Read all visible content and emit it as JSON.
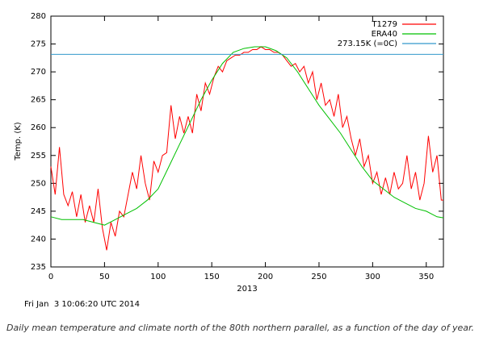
{
  "chart_data": {
    "type": "line",
    "xlabel": "2013",
    "ylabel": "Temp. (K)",
    "footer": "Fri Jan  3 10:06:20 UTC 2014",
    "caption": "Daily mean temperature and climate north of the 80th northern parallel, as a function of the day of year.",
    "xlim": [
      0,
      366
    ],
    "ylim": [
      235,
      280
    ],
    "xticks": [
      0,
      50,
      100,
      150,
      200,
      250,
      300,
      350
    ],
    "yticks": [
      235,
      240,
      245,
      250,
      255,
      260,
      265,
      270,
      275,
      280
    ],
    "legend": "upper right",
    "series": [
      {
        "name": "T1279",
        "color": "#ff0000",
        "x": [
          0,
          4,
          8,
          12,
          16,
          20,
          24,
          28,
          32,
          36,
          40,
          44,
          48,
          52,
          56,
          60,
          64,
          68,
          72,
          76,
          80,
          84,
          88,
          92,
          96,
          100,
          104,
          108,
          112,
          116,
          120,
          124,
          128,
          132,
          136,
          140,
          144,
          148,
          152,
          156,
          160,
          164,
          168,
          172,
          176,
          180,
          184,
          188,
          192,
          196,
          200,
          204,
          208,
          212,
          216,
          220,
          224,
          228,
          232,
          236,
          240,
          244,
          248,
          252,
          256,
          260,
          264,
          268,
          272,
          276,
          280,
          284,
          288,
          292,
          296,
          300,
          304,
          308,
          312,
          316,
          320,
          324,
          328,
          332,
          336,
          340,
          344,
          348,
          352,
          356,
          360,
          364,
          366
        ],
        "values": [
          253,
          248,
          256.5,
          248,
          246,
          248.5,
          244,
          248,
          243,
          246,
          243,
          249,
          242,
          238,
          243,
          240.5,
          245,
          244,
          248,
          252,
          249,
          255,
          250,
          247,
          254,
          252,
          255,
          255.5,
          264,
          258,
          262,
          259,
          262,
          259,
          266,
          263,
          268,
          266,
          269,
          271,
          270,
          272,
          272.5,
          273,
          273,
          273.5,
          273.5,
          274,
          274,
          274.5,
          274,
          274,
          273.5,
          273.5,
          273,
          272,
          271,
          271.5,
          270,
          271,
          268,
          270,
          265,
          268,
          264,
          265,
          262,
          266,
          260,
          262,
          258,
          255,
          258,
          253,
          255,
          250,
          252,
          248,
          251,
          248,
          252,
          249,
          250,
          255,
          249,
          252,
          247,
          250,
          258.5,
          252,
          255,
          247,
          247
        ]
      },
      {
        "name": "ERA40",
        "color": "#00c000",
        "x": [
          0,
          10,
          20,
          30,
          40,
          50,
          60,
          70,
          80,
          90,
          100,
          110,
          120,
          130,
          140,
          150,
          160,
          170,
          180,
          190,
          200,
          210,
          220,
          230,
          240,
          250,
          260,
          270,
          280,
          290,
          300,
          310,
          320,
          330,
          340,
          350,
          360,
          366
        ],
        "values": [
          244,
          243.5,
          243.5,
          243.5,
          243,
          242.5,
          243.5,
          244.5,
          245.5,
          247,
          249,
          253,
          257,
          261,
          265,
          268.5,
          271.5,
          273.5,
          274.2,
          274.5,
          274.5,
          273.8,
          272.5,
          270,
          267,
          264,
          261.5,
          259,
          256,
          253,
          250.5,
          249,
          247.5,
          246.5,
          245.5,
          245,
          244,
          243.8
        ]
      }
    ],
    "reference_line": {
      "name": "273.15K (=0C)",
      "value": 273.15,
      "color": "#3399cc"
    }
  }
}
